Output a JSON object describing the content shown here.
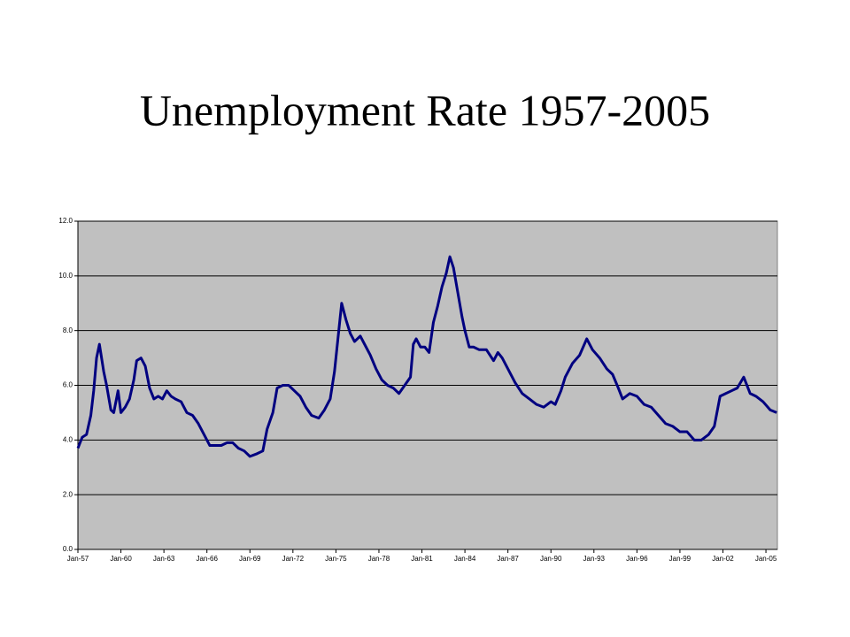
{
  "chart_data": {
    "type": "line",
    "title": "Unemployment Rate 1957-2005",
    "x": [
      1957.0,
      1957.3,
      1957.6,
      1957.9,
      1958.1,
      1958.3,
      1958.5,
      1958.8,
      1959.0,
      1959.3,
      1959.5,
      1959.8,
      1960.0,
      1960.3,
      1960.6,
      1960.9,
      1961.1,
      1961.4,
      1961.7,
      1962.0,
      1962.3,
      1962.6,
      1962.9,
      1963.2,
      1963.5,
      1963.8,
      1964.2,
      1964.6,
      1965.0,
      1965.4,
      1965.8,
      1966.2,
      1966.6,
      1967.0,
      1967.4,
      1967.8,
      1968.2,
      1968.6,
      1969.0,
      1969.5,
      1969.9,
      1970.2,
      1970.6,
      1970.9,
      1971.3,
      1971.7,
      1972.1,
      1972.5,
      1972.9,
      1973.3,
      1973.8,
      1974.2,
      1974.6,
      1974.9,
      1975.2,
      1975.4,
      1975.7,
      1976.0,
      1976.3,
      1976.7,
      1977.0,
      1977.4,
      1977.8,
      1978.2,
      1978.6,
      1979.0,
      1979.4,
      1979.8,
      1980.2,
      1980.4,
      1980.6,
      1980.9,
      1981.2,
      1981.5,
      1981.8,
      1982.1,
      1982.4,
      1982.7,
      1982.95,
      1983.2,
      1983.5,
      1983.8,
      1984.0,
      1984.3,
      1984.6,
      1985.0,
      1985.5,
      1986.0,
      1986.3,
      1986.6,
      1987.0,
      1987.5,
      1988.0,
      1988.5,
      1989.0,
      1989.5,
      1990.0,
      1990.3,
      1990.7,
      1991.0,
      1991.5,
      1992.0,
      1992.5,
      1992.9,
      1993.4,
      1993.9,
      1994.3,
      1994.7,
      1995.0,
      1995.5,
      1996.0,
      1996.5,
      1997.0,
      1997.5,
      1998.0,
      1998.5,
      1999.0,
      1999.5,
      2000.0,
      2000.5,
      2001.0,
      2001.4,
      2001.8,
      2002.2,
      2002.6,
      2003.0,
      2003.45,
      2003.9,
      2004.3,
      2004.8,
      2005.3,
      2005.75
    ],
    "series": [
      {
        "name": "Unemployment Rate",
        "color": "#000080",
        "values": [
          3.7,
          4.1,
          4.2,
          4.9,
          5.8,
          7.0,
          7.5,
          6.5,
          6.0,
          5.1,
          5.0,
          5.8,
          5.0,
          5.2,
          5.5,
          6.2,
          6.9,
          7.0,
          6.7,
          5.9,
          5.5,
          5.6,
          5.5,
          5.8,
          5.6,
          5.5,
          5.4,
          5.0,
          4.9,
          4.6,
          4.2,
          3.8,
          3.8,
          3.8,
          3.9,
          3.9,
          3.7,
          3.6,
          3.4,
          3.5,
          3.6,
          4.4,
          5.0,
          5.9,
          6.0,
          6.0,
          5.8,
          5.6,
          5.2,
          4.9,
          4.8,
          5.1,
          5.5,
          6.5,
          8.0,
          9.0,
          8.4,
          7.9,
          7.6,
          7.8,
          7.5,
          7.1,
          6.6,
          6.2,
          6.0,
          5.9,
          5.7,
          6.0,
          6.3,
          7.5,
          7.7,
          7.4,
          7.4,
          7.2,
          8.3,
          8.9,
          9.6,
          10.1,
          10.7,
          10.3,
          9.4,
          8.5,
          8.0,
          7.4,
          7.4,
          7.3,
          7.3,
          6.9,
          7.2,
          7.0,
          6.6,
          6.1,
          5.7,
          5.5,
          5.3,
          5.2,
          5.4,
          5.3,
          5.8,
          6.3,
          6.8,
          7.1,
          7.7,
          7.3,
          7.0,
          6.6,
          6.4,
          5.9,
          5.5,
          5.7,
          5.6,
          5.3,
          5.2,
          4.9,
          4.6,
          4.5,
          4.3,
          4.3,
          4.0,
          4.0,
          4.2,
          4.5,
          5.6,
          5.7,
          5.8,
          5.9,
          6.3,
          5.7,
          5.6,
          5.4,
          5.1,
          5.0
        ]
      }
    ],
    "xlim": [
      1957,
      2005.8
    ],
    "xticks": [
      {
        "value": 1957,
        "label": "Jan-57"
      },
      {
        "value": 1960,
        "label": "Jan-60"
      },
      {
        "value": 1963,
        "label": "Jan-63"
      },
      {
        "value": 1966,
        "label": "Jan-66"
      },
      {
        "value": 1969,
        "label": "Jan-69"
      },
      {
        "value": 1972,
        "label": "Jan-72"
      },
      {
        "value": 1975,
        "label": "Jan-75"
      },
      {
        "value": 1978,
        "label": "Jan-78"
      },
      {
        "value": 1981,
        "label": "Jan-81"
      },
      {
        "value": 1984,
        "label": "Jan-84"
      },
      {
        "value": 1987,
        "label": "Jan-87"
      },
      {
        "value": 1990,
        "label": "Jan-90"
      },
      {
        "value": 1993,
        "label": "Jan-93"
      },
      {
        "value": 1996,
        "label": "Jan-96"
      },
      {
        "value": 1999,
        "label": "Jan-99"
      },
      {
        "value": 2002,
        "label": "Jan-02"
      },
      {
        "value": 2005,
        "label": "Jan-05"
      }
    ],
    "ylim": [
      0,
      12
    ],
    "yticks": [
      {
        "value": 0,
        "label": "0.0"
      },
      {
        "value": 2,
        "label": "2.0"
      },
      {
        "value": 4,
        "label": "4.0"
      },
      {
        "value": 6,
        "label": "6.0"
      },
      {
        "value": 8,
        "label": "8.0"
      },
      {
        "value": 10,
        "label": "10.0"
      },
      {
        "value": 12,
        "label": "12.0"
      }
    ],
    "grid": true,
    "plot_background": "#c0c0c0"
  }
}
